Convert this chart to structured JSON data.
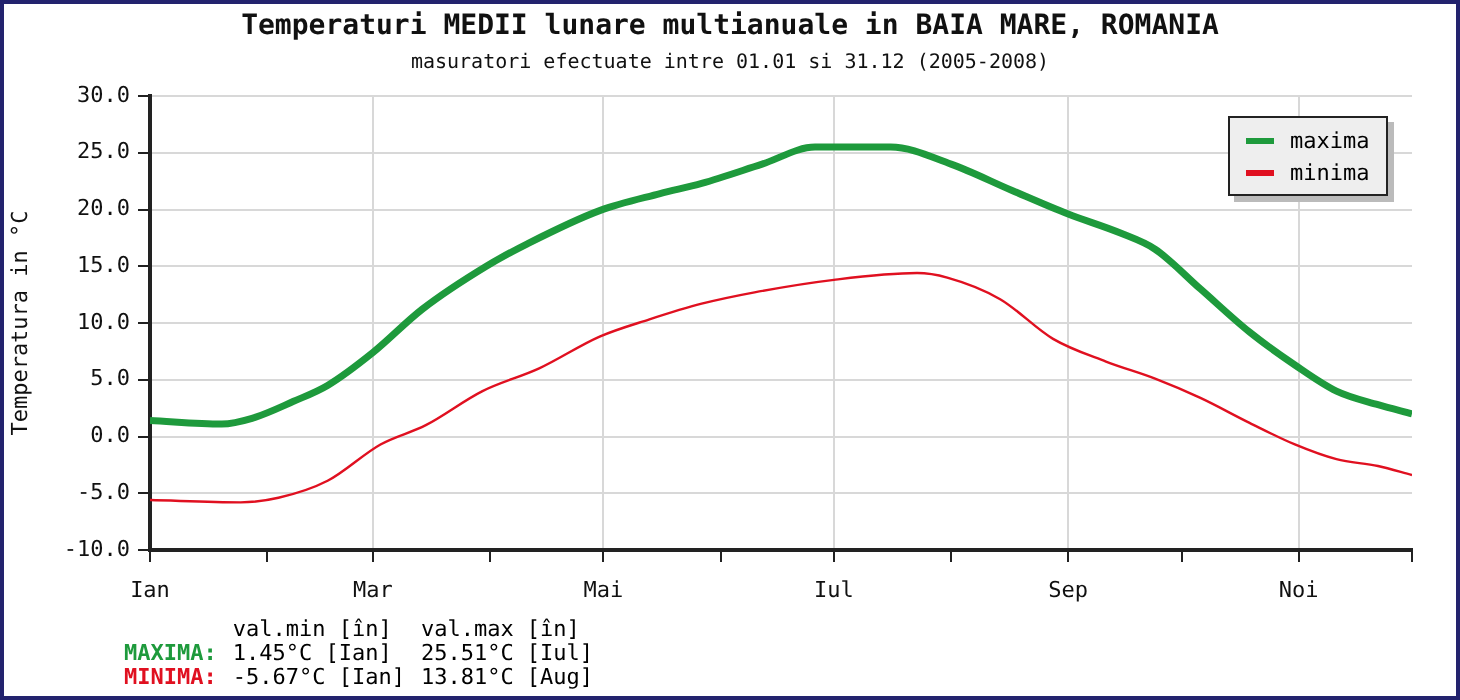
{
  "chart_data": {
    "type": "line",
    "title": "Temperaturi MEDII lunare multianuale in BAIA MARE, ROMANIA",
    "subtitle": "masuratori efectuate intre 01.01 si 31.12 (2005-2008)",
    "ylabel": "Temperatura in °C",
    "xlim": [
      "--01-01",
      "--12-01"
    ],
    "xticks": [
      {
        "value": "--01-01",
        "label": "Ian"
      },
      {
        "value": "--02-01",
        "label": null
      },
      {
        "value": "--03-01",
        "label": "Mar"
      },
      {
        "value": "--04-01",
        "label": null
      },
      {
        "value": "--05-01",
        "label": "Mai"
      },
      {
        "value": "--06-01",
        "label": null
      },
      {
        "value": "--07-01",
        "label": "Iul"
      },
      {
        "value": "--08-01",
        "label": null
      },
      {
        "value": "--09-01",
        "label": "Sep"
      },
      {
        "value": "--10-01",
        "label": null
      },
      {
        "value": "--11-01",
        "label": "Noi"
      },
      {
        "value": "--12-01",
        "label": null
      }
    ],
    "ylim": [
      -10,
      30
    ],
    "yticks": [
      {
        "value": -10,
        "label": "-10.0"
      },
      {
        "value": -5,
        "label": "-5.0"
      },
      {
        "value": 0,
        "label": "0.0"
      },
      {
        "value": 5,
        "label": "5.0"
      },
      {
        "value": 10,
        "label": "10.0"
      },
      {
        "value": 15,
        "label": "15.0"
      },
      {
        "value": 20,
        "label": "20.0"
      },
      {
        "value": 25,
        "label": "25.0"
      },
      {
        "value": 30,
        "label": "30.0"
      }
    ],
    "grid": true,
    "legend": "top right",
    "marker": "none",
    "line_style": "solid",
    "series": [
      {
        "name": "maxima",
        "color": "#1e9a3c",
        "x": [
          "--01-01",
          "--01-20",
          "--01-28",
          "--02-08",
          "--02-17",
          "--03-01",
          "--03-14",
          "--03-31",
          "--04-11",
          "--04-30",
          "--05-16",
          "--05-27",
          "--06-12",
          "--06-26",
          "--07-16",
          "--08-01",
          "--08-17",
          "--09-01",
          "--09-15",
          "--09-24",
          "--10-06",
          "--10-19",
          "--10-31",
          "--11-11",
          "--11-22",
          "--12-01"
        ],
        "values": [
          1.4,
          1.1,
          1.6,
          3.1,
          4.5,
          7.4,
          11.2,
          15,
          17,
          19.9,
          21.4,
          22.3,
          24,
          25.5,
          25.5,
          24,
          21.7,
          19.6,
          17.9,
          16.5,
          13,
          9.2,
          6.3,
          4,
          2.8,
          2
        ]
      },
      {
        "name": "minima",
        "color": "#e01020",
        "x": [
          "--01-01",
          "--01-25",
          "--02-04",
          "--02-17",
          "--03-03",
          "--03-15",
          "--03-30",
          "--04-14",
          "--04-30",
          "--05-13",
          "--05-27",
          "--06-10",
          "--07-01",
          "--07-23",
          "--07-31",
          "--08-14",
          "--08-28",
          "--09-11",
          "--09-24",
          "--10-06",
          "--10-19",
          "--10-31",
          "--11-11",
          "--11-22",
          "--12-01"
        ],
        "values": [
          -5.6,
          -5.8,
          -5.4,
          -3.9,
          -0.7,
          1,
          4,
          6,
          8.8,
          10.3,
          11.7,
          12.7,
          13.8,
          14.4,
          14,
          12.1,
          8.6,
          6.6,
          5.1,
          3.4,
          1.2,
          -0.7,
          -2,
          -2.6,
          -3.4
        ]
      }
    ],
    "annotations": [
      "val.min [în]",
      "val.max [în]",
      "MAXIMA:",
      "1.45°C [Ian]",
      "25.51°C [Iul]",
      "MINIMA:",
      "-5.67°C [Ian]",
      "13.81°C [Aug]"
    ]
  }
}
